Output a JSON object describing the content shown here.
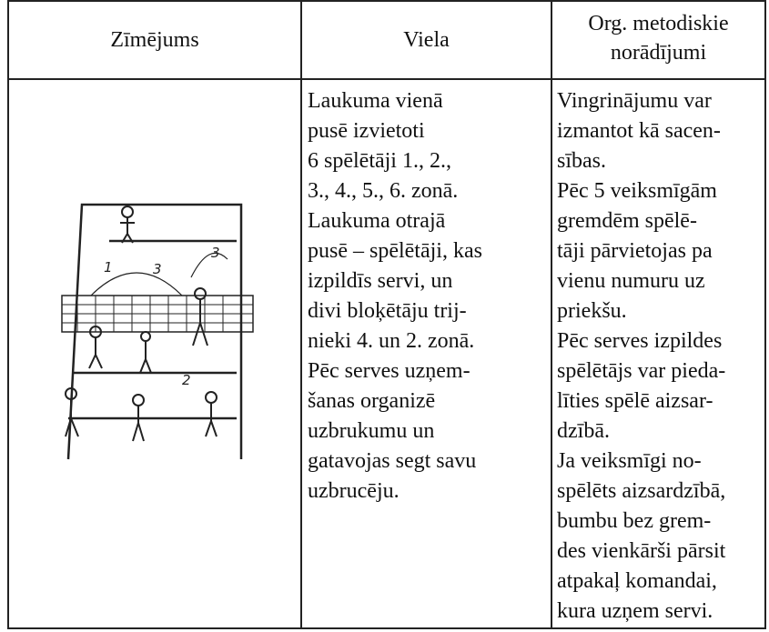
{
  "header": {
    "drawing": "Zīmējums",
    "material": "Viela",
    "notes": [
      "Org. metodiskie",
      "norādījumi"
    ]
  },
  "row": {
    "drawing_labels": [
      "1",
      "3",
      "3",
      "2"
    ],
    "material": [
      "Laukuma vienā",
      "pusē izvietoti",
      "6 spēlētāji 1., 2.,",
      "3., 4., 5., 6. zonā.",
      "Laukuma otrajā",
      "pusē – spēlētāji, kas",
      "izpildīs servi, un",
      "divi bloķētāju trij-",
      "nieki 4. un 2. zonā.",
      "Pēc serves uzņem-",
      "šanas organizē",
      "uzbrukumu un",
      "gatavojas segt savu",
      "uzbrucēju."
    ],
    "notes": [
      "Vingrinājumu var",
      "izmantot kā sacen-",
      "sības.",
      "Pēc 5 veiksmīgām",
      "gremdēm spēlē-",
      "tāji pārvietojas pa",
      "vienu numuru uz",
      "priekšu.",
      "Pēc serves izpildes",
      "spēlētājs var pieda-",
      "līties spēlē aizsar-",
      "dzībā.",
      "Ja veiksmīgi no-",
      "spēlēts aizsardzībā,",
      "bumbu bez grem-",
      "des vienkārši pārsit",
      "atpakaļ komandai,",
      "kura uzņem servi."
    ]
  }
}
